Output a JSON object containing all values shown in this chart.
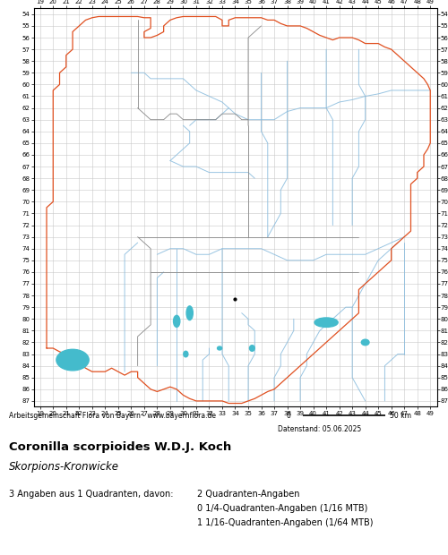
{
  "title_species": "Coronilla scorpioides W.D.J. Koch",
  "title_common": "Skorpions-Kronwicke",
  "footer_org": "Arbeitsgemeinschaft Flora von Bayern - www.bayernflora.de",
  "footer_date": "Datenstand: 05.06.2025",
  "stats_line1": "3 Angaben aus 1 Quadranten, davon:",
  "stats_right1": "2 Quadranten-Angaben",
  "stats_right2": "0 1/4-Quadranten-Angaben (1/16 MTB)",
  "stats_right3": "1 1/16-Quadranten-Angaben (1/64 MTB)",
  "x_min": 19,
  "x_max": 49,
  "y_min": 54,
  "y_max": 87,
  "grid_color": "#c8c8c8",
  "background_color": "#ffffff",
  "outer_border_color": "#e05020",
  "inner_border_color": "#888888",
  "river_color": "#88bbdd",
  "lake_color": "#44bbcc",
  "dot_color": "#000000",
  "fig_width": 5.0,
  "fig_height": 6.2
}
